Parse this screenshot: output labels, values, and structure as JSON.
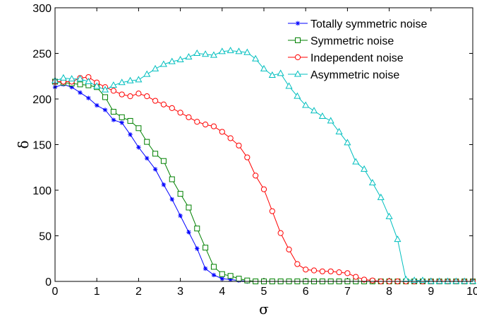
{
  "chart_data": {
    "type": "line",
    "xlabel": "σ",
    "ylabel": "δ",
    "xlim": [
      0,
      10
    ],
    "ylim": [
      0,
      300
    ],
    "xticks": [
      "0",
      "1",
      "2",
      "3",
      "4",
      "5",
      "6",
      "7",
      "8",
      "9",
      "10"
    ],
    "yticks": [
      "0",
      "50",
      "100",
      "150",
      "200",
      "250",
      "300"
    ],
    "grid": false,
    "legend_position": "top-right",
    "x": [
      0,
      0.2,
      0.4,
      0.6,
      0.8,
      1,
      1.2,
      1.4,
      1.6,
      1.8,
      2,
      2.2,
      2.4,
      2.6,
      2.8,
      3,
      3.2,
      3.4,
      3.6,
      3.8,
      4,
      4.2,
      4.4,
      4.6,
      4.8,
      5,
      5.2,
      5.4,
      5.6,
      5.8,
      6,
      6.2,
      6.4,
      6.6,
      6.8,
      7,
      7.2,
      7.4,
      7.6,
      7.8,
      8,
      8.2,
      8.4,
      8.6,
      8.8,
      9,
      9.2,
      9.4,
      9.6,
      9.8,
      10
    ],
    "series": [
      {
        "name": "Totally symmetric noise",
        "color": "#0000ff",
        "marker": "asterisk",
        "values": [
          213,
          216,
          213,
          207,
          201,
          193,
          188,
          177,
          174,
          161,
          147,
          135,
          123,
          106,
          90,
          72,
          54,
          36,
          14,
          7,
          3,
          2,
          1,
          0,
          0,
          0,
          0,
          0,
          0,
          0,
          0,
          0,
          0,
          0,
          0,
          0,
          0,
          0,
          0,
          0,
          0,
          0,
          0,
          0,
          0,
          0,
          0,
          0,
          0,
          0,
          0
        ]
      },
      {
        "name": "Symmetric noise",
        "color": "#008000",
        "marker": "square",
        "values": [
          219,
          218,
          217,
          216,
          215,
          213,
          202,
          186,
          180,
          176,
          168,
          153,
          140,
          132,
          112,
          96,
          81,
          58,
          37,
          16,
          8,
          6,
          3,
          1,
          0,
          0,
          0,
          0,
          0,
          0,
          0,
          0,
          0,
          0,
          0,
          0,
          0,
          0,
          0,
          0,
          0,
          0,
          0,
          0,
          0,
          0,
          0,
          0,
          0,
          0,
          0
        ]
      },
      {
        "name": "Independent noise",
        "color": "#ff0000",
        "marker": "circle",
        "values": [
          219,
          219,
          219,
          223,
          224,
          218,
          213,
          209,
          205,
          203,
          206,
          203,
          198,
          194,
          190,
          185,
          180,
          175,
          172,
          170,
          164,
          157,
          149,
          136,
          116,
          101,
          77,
          53,
          35,
          19,
          13,
          12,
          11,
          11,
          10,
          9,
          5,
          2,
          1,
          0,
          0,
          0,
          0,
          0,
          0,
          0,
          0,
          0,
          0,
          0,
          0
        ]
      },
      {
        "name": "Asymmetric noise",
        "color": "#00bfbf",
        "marker": "triangle",
        "values": [
          220,
          223,
          222,
          222,
          219,
          214,
          210,
          215,
          218,
          220,
          221,
          227,
          233,
          238,
          241,
          243,
          246,
          250,
          249,
          248,
          252,
          253,
          252,
          251,
          244,
          233,
          226,
          228,
          214,
          203,
          193,
          187,
          181,
          176,
          164,
          152,
          131,
          123,
          108,
          92,
          71,
          46,
          2,
          1,
          1,
          0,
          0,
          0,
          0,
          0,
          0
        ]
      }
    ]
  }
}
